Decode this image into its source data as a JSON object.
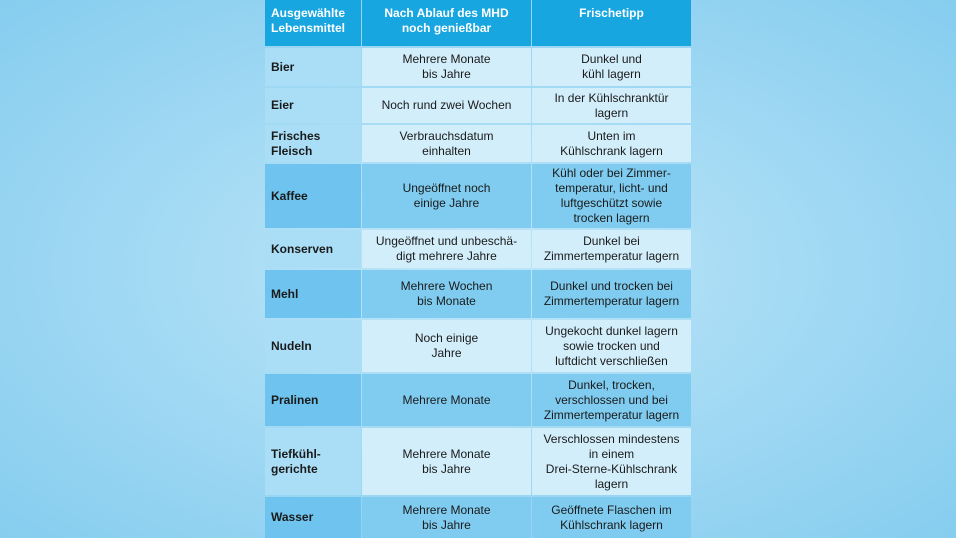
{
  "table": {
    "header": [
      "Ausgewählte\nLebensmittel",
      "Nach Ablauf des MHD\nnoch genießbar",
      "Frischetipp"
    ],
    "rows": [
      [
        "Bier",
        "Mehrere Monate\nbis Jahre",
        "Dunkel und\nkühl lagern"
      ],
      [
        "Eier",
        "Noch rund zwei Wochen",
        "In der Kühlschranktür\nlagern"
      ],
      [
        "Frisches\nFleisch",
        "Verbrauchsdatum\neinhalten",
        "Unten im\nKühlschrank lagern"
      ],
      [
        "Kaffee",
        "Ungeöffnet noch\neinige Jahre",
        "Kühl oder bei Zimmer-\ntemperatur, licht- und\nluftgeschützt sowie\ntrocken lagern"
      ],
      [
        "Konserven",
        "Ungeöffnet und unbeschä-\ndigt mehrere Jahre",
        "Dunkel bei\nZimmertemperatur lagern"
      ],
      [
        "Mehl",
        "Mehrere Wochen\nbis Monate",
        "Dunkel und trocken bei\nZimmertemperatur lagern"
      ],
      [
        "Nudeln",
        "Noch einige\nJahre",
        "Ungekocht dunkel lagern\nsowie trocken und\nluftdicht verschließen"
      ],
      [
        "Pralinen",
        "Mehrere Monate",
        "Dunkel, trocken,\nverschlossen und bei\nZimmertemperatur lagern"
      ],
      [
        "Tiefkühl-\ngerichte",
        "Mehrere Monate\nbis Jahre",
        "Verschlossen mindestens\nin einem\nDrei-Sterne-Kühlschrank\nlagern"
      ],
      [
        "Wasser",
        "Mehrere Monate\nbis Jahre",
        "Geöffnete Flaschen im\nKühlschrank lagern"
      ]
    ]
  }
}
